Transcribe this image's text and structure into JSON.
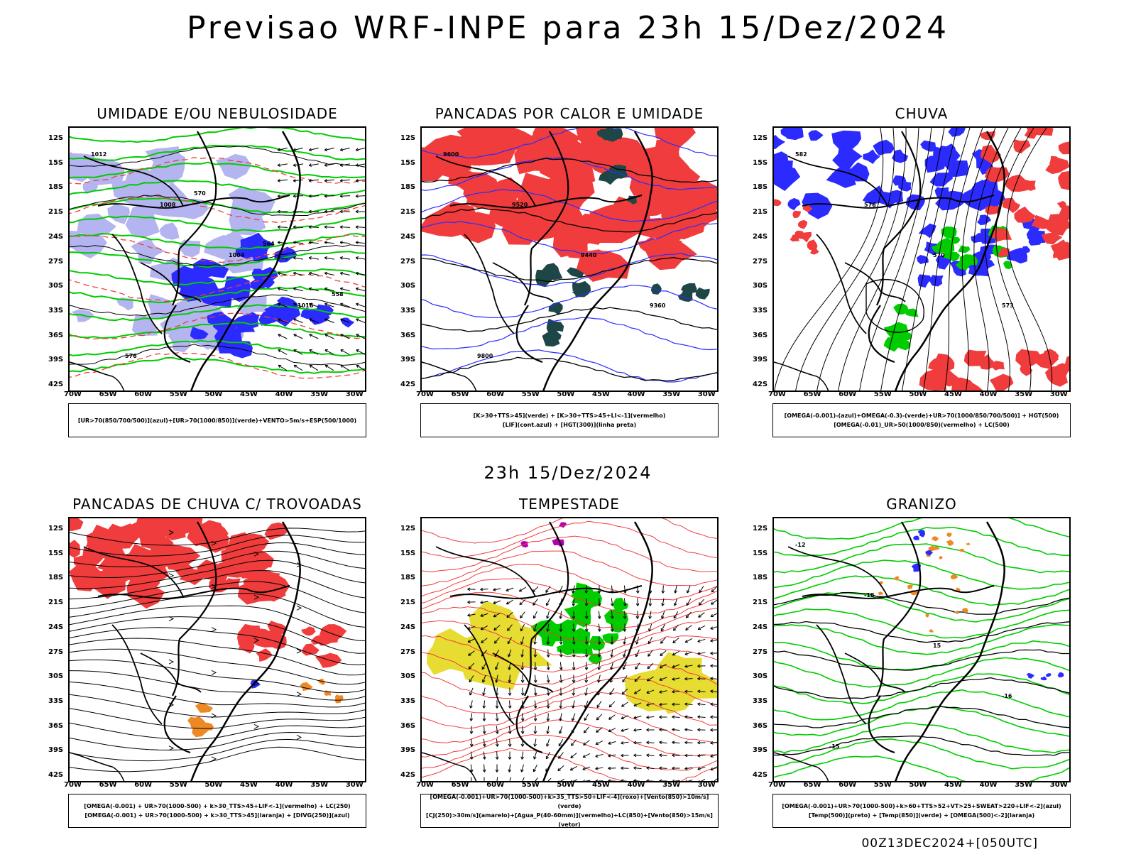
{
  "header": {
    "title": "Previsao WRF-INPE  para 23h 15/Dez/2024"
  },
  "middle": {
    "subtitle": "23h 15/Dez/2024"
  },
  "footer": {
    "run": "00Z13DEC2024+[050UTC]"
  },
  "axes": {
    "lat": [
      "12S",
      "15S",
      "18S",
      "21S",
      "24S",
      "27S",
      "30S",
      "33S",
      "36S",
      "39S",
      "42S"
    ],
    "lon": [
      "70W",
      "65W",
      "60W",
      "55W",
      "50W",
      "45W",
      "40W",
      "35W",
      "30W"
    ]
  },
  "panels": [
    {
      "title": "UMIDADE E/OU NEBULOSIDADE",
      "legend": [
        "[UR>70(850/700/500)](azul)+[UR>70(1000/850)](verde)+VENTO>5m/s+ESP(500/1000)"
      ],
      "labels": [
        "1012",
        "1008",
        "1004",
        "1016",
        "576",
        "570",
        "564",
        "558"
      ]
    },
    {
      "title": "PANCADAS POR CALOR E UMIDADE",
      "legend": [
        "[K>30+TTS>45](verde) + [K>30+TTS>45+LI<-1](vermelho)",
        "[LIF](cont.azul) + [HGT(300)](linha preta)"
      ],
      "labels": [
        "9600",
        "9520",
        "9440",
        "9360",
        "9800"
      ]
    },
    {
      "title": "CHUVA",
      "legend": [
        "[OMEGA(-0.001)-(azul)+OMEGA(-0.3)-(verde)+UR>70(1000/850/700/500)] + HGT(500)",
        "[OMEGA(-0.01)_UR>50(1000/850)(vermelho) + LC(500)"
      ],
      "labels": [
        "582",
        "576",
        "570",
        "573"
      ]
    },
    {
      "title": "PANCADAS DE CHUVA C/ TROVOADAS",
      "legend": [
        "[OMEGA(-0.001) + UR>70(1000-500) + k>30_TTS>45+LIF<-1](vermelho) + LC(250)",
        "[OMEGA(-0.001) + UR>70(1000-500) + k>30_TTS>45](laranja) + [DIVG(250)](azul)"
      ],
      "labels": []
    },
    {
      "title": "TEMPESTADE",
      "legend": [
        "[OMEGA(-0.001)+UR>70(1000-500)+k>35_TTS>50+LIF<-4](roxo)+[Vento(850)>10m/s](verde)",
        "[CJ(250)>30m/s](amarelo)+[Agua_P(40-60mm)](vermelho)+LC(850)+[Vento(850)>15m/s](vetor)"
      ],
      "labels": []
    },
    {
      "title": "GRANIZO",
      "legend": [
        "[OMEGA(-0.001)+UR>70(1000-500)+k>60+TTS>52+VT>25+SWEAT>220+LIF<-2](azul)",
        "[Temp(500)](preto) + [Temp(850)](verde) + [OMEGA(500)<-2](laranja)"
      ],
      "labels": [
        "-12",
        "-18",
        "15",
        "-16",
        "-15"
      ]
    }
  ],
  "colors": {
    "blue": "#2b2bff",
    "lightblue": "#b4b4f0",
    "green": "#00cc00",
    "red": "#f03c3c",
    "darkgreen": "#1e4646",
    "orange": "#ee8822",
    "yellow": "#e6dc32",
    "purple": "#b400b4"
  }
}
